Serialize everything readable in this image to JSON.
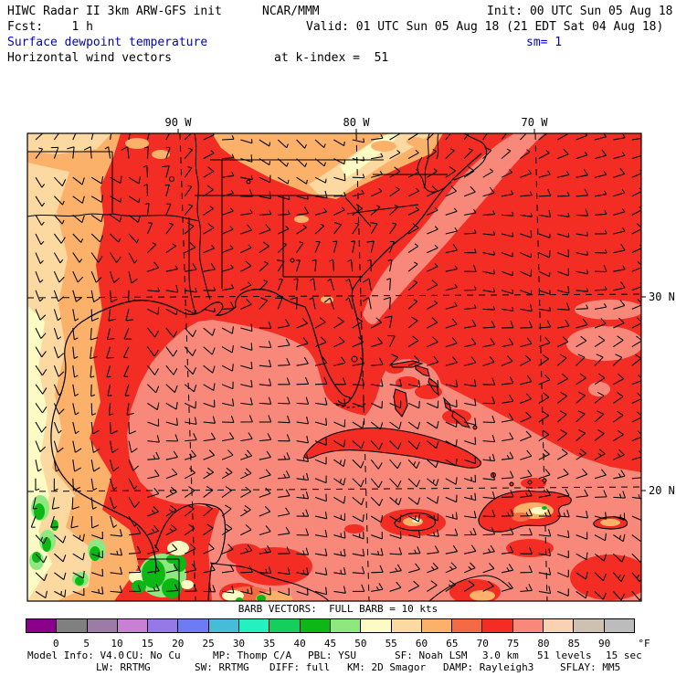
{
  "header": {
    "line1_left": "HIWC Radar II 3km ARW-GFS init",
    "line1_center": "NCAR/MMM",
    "line1_right": "Init: 00 UTC Sun 05 Aug 18",
    "line2_left": "Fcst:    1 h",
    "line2_right": "Valid: 01 UTC Sun 05 Aug 18 (21 EDT Sat 04 Aug 18)",
    "field_label": "Surface dewpoint temperature",
    "sm_label": "sm= 1",
    "vector_label": "Horizontal wind vectors",
    "level_label": "at k-index =  51",
    "accent_color": "#0000CC"
  },
  "map": {
    "lon_labels": [
      "90 W",
      "80 W",
      "70 W"
    ],
    "lat_labels": [
      "30 N",
      "20 N"
    ]
  },
  "colorbar": {
    "title": "BARB VECTORS:  FULL BARB = 10 kts",
    "unit": "°F",
    "tick_labels": [
      "0",
      "5",
      "10",
      "15",
      "20",
      "25",
      "30",
      "35",
      "40",
      "45",
      "50",
      "55",
      "60",
      "65",
      "70",
      "75",
      "80",
      "85",
      "90"
    ],
    "colors": [
      "#8B008B",
      "#808080",
      "#9C7BA6",
      "#C97FD4",
      "#9678E8",
      "#6F7BF2",
      "#46BCD9",
      "#25F0C0",
      "#15CF5D",
      "#0DB814",
      "#8EE87F",
      "#FBFBC3",
      "#FCD9A0",
      "#FBB169",
      "#F36A45",
      "#F32C24",
      "#F8897A",
      "#FAD2B2",
      "#CEC1B2",
      "#BCBCBC"
    ]
  },
  "chart_data": {
    "type": "heatmap",
    "title": "Surface dewpoint temperature (shaded, °F) and horizontal wind vectors",
    "legend": "full barb = 10 kts",
    "scale_ticks_F": [
      0,
      5,
      10,
      15,
      20,
      25,
      30,
      35,
      40,
      45,
      50,
      55,
      60,
      65,
      70,
      75,
      80,
      85,
      90
    ],
    "lon_ticks": [
      "90 W",
      "80 W",
      "70 W"
    ],
    "lat_ticks": [
      "30 N",
      "20 N"
    ]
  },
  "footer": {
    "line1": [
      "Model Info: V4.0",
      "CU: No Cu",
      "MP: Thomp C/A",
      "PBL: YSU",
      "SF: Noah LSM",
      "3.0 km",
      "51 levels",
      "15 sec"
    ],
    "line2": [
      "LW: RRTMG",
      "SW: RRTMG",
      "DIFF: full",
      "KM: 2D Smagor",
      "DAMP: Rayleigh3",
      "SFLAY: MM5"
    ]
  }
}
